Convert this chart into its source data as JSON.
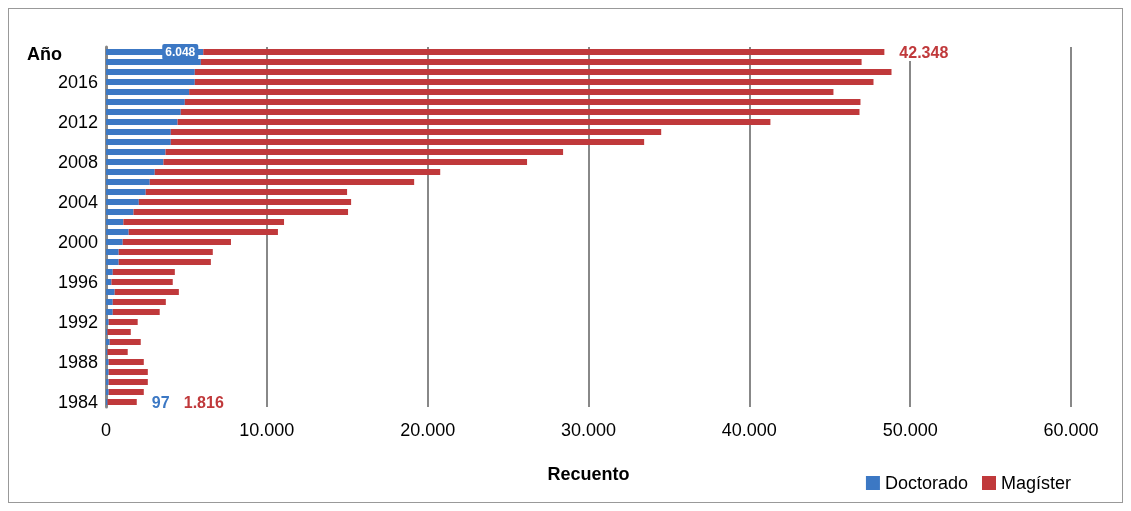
{
  "chart_data": {
    "type": "bar",
    "orientation": "horizontal",
    "stacked": true,
    "ylabel": "Año",
    "xlabel": "Recuento",
    "categories": [
      null,
      null,
      null,
      "2016",
      null,
      null,
      null,
      "2012",
      null,
      null,
      null,
      "2008",
      null,
      null,
      null,
      "2004",
      null,
      null,
      null,
      "2000",
      null,
      null,
      null,
      "1996",
      null,
      null,
      null,
      "1992",
      null,
      null,
      null,
      "1988",
      null,
      null,
      null,
      "1984"
    ],
    "series": [
      {
        "name": "Doctorado",
        "color": "#3c78c4",
        "values": [
          6048,
          5900,
          5520,
          5520,
          5170,
          4900,
          4650,
          4450,
          4030,
          4030,
          3700,
          3570,
          3030,
          2720,
          2470,
          2040,
          1710,
          1080,
          1410,
          1040,
          790,
          790,
          420,
          340,
          540,
          420,
          420,
          170,
          90,
          230,
          90,
          170,
          170,
          170,
          170,
          97
        ],
        "value_labels": [
          "6.048",
          null,
          null,
          null,
          null,
          null,
          null,
          null,
          null,
          null,
          null,
          null,
          null,
          null,
          null,
          null,
          null,
          null,
          null,
          null,
          null,
          null,
          null,
          null,
          null,
          null,
          null,
          null,
          null,
          null,
          null,
          null,
          null,
          null,
          null,
          "97"
        ]
      },
      {
        "name": "Magíster",
        "color": "#c0393b",
        "values": [
          42348,
          41080,
          43320,
          42200,
          40060,
          42010,
          42200,
          36860,
          30490,
          29430,
          24720,
          22610,
          17750,
          16440,
          12520,
          13200,
          13340,
          9990,
          9280,
          6730,
          5850,
          5730,
          3860,
          3810,
          3990,
          3300,
          2920,
          1800,
          1450,
          1930,
          1260,
          2180,
          2430,
          2430,
          2180,
          1816
        ],
        "value_labels": [
          "42.348",
          null,
          null,
          null,
          null,
          null,
          null,
          null,
          null,
          null,
          null,
          null,
          null,
          null,
          null,
          null,
          null,
          null,
          null,
          null,
          null,
          null,
          null,
          null,
          null,
          null,
          null,
          null,
          null,
          null,
          null,
          null,
          null,
          null,
          null,
          "1.816"
        ]
      }
    ],
    "xlim": [
      0,
      60000
    ],
    "xticks": [
      0,
      {
        "value": 10000,
        "label": "10.000"
      },
      {
        "value": 20000,
        "label": "20.000"
      },
      {
        "value": 30000,
        "label": "30.000"
      },
      {
        "value": 40000,
        "label": "40.000"
      },
      {
        "value": 50000,
        "label": "50.000"
      },
      {
        "value": 60000,
        "label": "60.000"
      }
    ],
    "grid": "x",
    "legend": "bottom right"
  }
}
